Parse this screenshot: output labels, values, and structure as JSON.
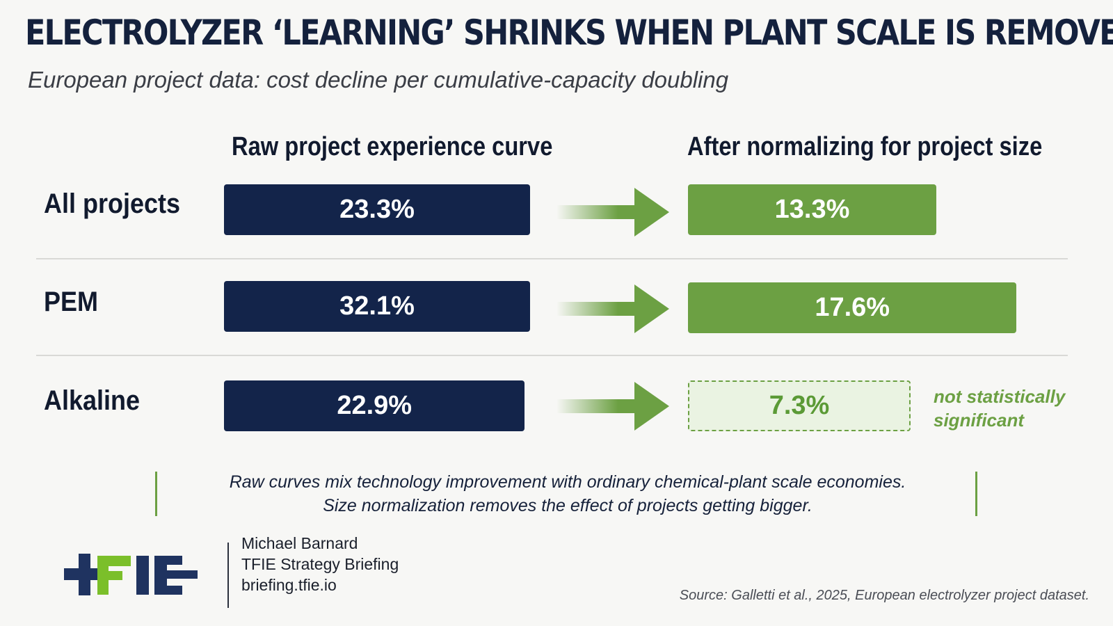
{
  "header": {
    "title": "ELECTROLYZER ‘LEARNING’ SHRINKS WHEN PLANT SCALE IS REMOVED",
    "subtitle": "European project data: cost decline per cumulative-capacity doubling"
  },
  "chart_data": {
    "type": "bar",
    "title": "ELECTROLYZER ‘LEARNING’ SHRINKS WHEN PLANT SCALE IS REMOVED",
    "subtitle": "European project data: cost decline per cumulative-capacity doubling",
    "column_headers": [
      "Raw project experience curve",
      "After normalizing for project size"
    ],
    "categories": [
      "All projects",
      "PEM",
      "Alkaline"
    ],
    "series": [
      {
        "name": "Raw project experience curve",
        "values": [
          23.3,
          32.1,
          22.9
        ],
        "labels": [
          "23.3%",
          "32.1%",
          "22.9%"
        ]
      },
      {
        "name": "After normalizing for project size",
        "values": [
          13.3,
          17.6,
          7.3
        ],
        "labels": [
          "13.3%",
          "17.6%",
          "7.3%"
        ]
      }
    ],
    "annotations": [
      "not statistically significant"
    ],
    "unit": "%",
    "legend": "none",
    "grid": false
  },
  "annotation": {
    "ns_line1": "not statistically",
    "ns_line2": "significant"
  },
  "note": {
    "line1": "Raw curves mix technology improvement with ordinary chemical-plant scale economies.",
    "line2": "Size normalization removes the effect of projects getting bigger."
  },
  "footer": {
    "logo_text": "TFIE",
    "author": "Michael Barnard",
    "org": "TFIE Strategy Briefing",
    "url": "briefing.tfie.io",
    "source": "Source: Galletti et al., 2025, European electrolyzer project dataset."
  },
  "colors": {
    "raw_bar": "#13244a",
    "normalized_bar": "#6ca043",
    "not_significant_fill": "#eaf3e2",
    "accent_green": "#6ca043",
    "title_navy": "#14213d",
    "background": "#f7f7f5"
  },
  "icons": {
    "arrow": "right-arrow-icon",
    "logo": "tfie-logo"
  }
}
